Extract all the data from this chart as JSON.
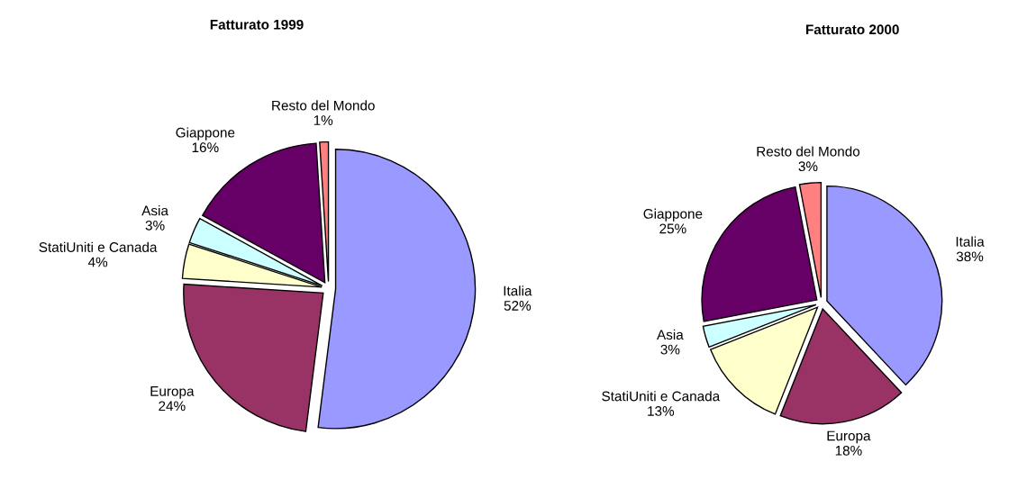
{
  "chart_data": [
    {
      "type": "pie",
      "title": "Fatturato 1999",
      "categories": [
        "Italia",
        "Europa",
        "StatiUniti e Canada",
        "Asia",
        "Giappone",
        "Resto del Mondo"
      ],
      "values": [
        52,
        24,
        4,
        3,
        16,
        1
      ],
      "value_labels": [
        "52%",
        "24%",
        "4%",
        "3%",
        "16%",
        "1%"
      ],
      "colors": [
        "#9999ff",
        "#993366",
        "#ffffcc",
        "#ccffff",
        "#660066",
        "#ff8080"
      ]
    },
    {
      "type": "pie",
      "title": "Fatturato 2000",
      "categories": [
        "Italia",
        "Europa",
        "StatiUniti e Canada",
        "Asia",
        "Giappone",
        "Resto del Mondo"
      ],
      "values": [
        38,
        18,
        13,
        3,
        25,
        3
      ],
      "value_labels": [
        "38%",
        "18%",
        "13%",
        "3%",
        "25%",
        "3%"
      ],
      "colors": [
        "#9999ff",
        "#993366",
        "#ffffcc",
        "#ccffff",
        "#660066",
        "#ff8080"
      ]
    }
  ]
}
